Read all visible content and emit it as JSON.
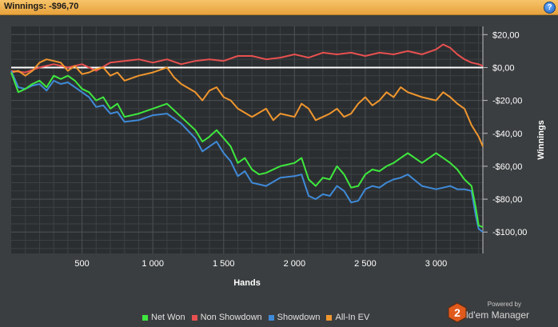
{
  "header": {
    "title": "Winnings: -$96,70",
    "help_label": "?"
  },
  "chart_data": {
    "type": "line",
    "xlabel": "Hands",
    "ylabel": "Winnings",
    "xlim": [
      0,
      3330
    ],
    "ylim": [
      -113,
      25
    ],
    "x_ticks": [
      500,
      1000,
      1500,
      2000,
      2500,
      3000
    ],
    "x_tick_labels": [
      "500",
      "1 000",
      "1 500",
      "2 000",
      "2 500",
      "3 000"
    ],
    "y_ticks": [
      20,
      0,
      -20,
      -40,
      -60,
      -80,
      -100
    ],
    "y_tick_labels": [
      "$20,00",
      "$0,00",
      "-$20,00",
      "-$40,00",
      "-$60,00",
      "-$80,00",
      "-$100,00"
    ],
    "grid": true,
    "legend_position": "bottom",
    "zero_line": true,
    "series": [
      {
        "name": "Net Won",
        "color": "#3ee83e",
        "x": [
          0,
          50,
          100,
          150,
          200,
          250,
          300,
          350,
          400,
          450,
          500,
          550,
          600,
          650,
          700,
          750,
          800,
          900,
          1000,
          1100,
          1200,
          1300,
          1350,
          1400,
          1450,
          1500,
          1550,
          1600,
          1650,
          1700,
          1750,
          1800,
          1900,
          2000,
          2050,
          2100,
          2150,
          2200,
          2250,
          2300,
          2350,
          2400,
          2450,
          2500,
          2550,
          2600,
          2650,
          2700,
          2750,
          2800,
          2900,
          3000,
          3050,
          3100,
          3150,
          3200,
          3250,
          3280,
          3300,
          3330
        ],
        "y": [
          -3,
          -15,
          -13,
          -10,
          -8,
          -12,
          -5,
          -7,
          -5,
          -8,
          -13,
          -15,
          -20,
          -18,
          -25,
          -22,
          -30,
          -28,
          -25,
          -22,
          -30,
          -38,
          -45,
          -42,
          -38,
          -43,
          -48,
          -58,
          -55,
          -62,
          -65,
          -64,
          -60,
          -58,
          -55,
          -68,
          -72,
          -67,
          -68,
          -60,
          -65,
          -73,
          -72,
          -65,
          -62,
          -63,
          -60,
          -58,
          -55,
          -52,
          -58,
          -52,
          -55,
          -58,
          -62,
          -68,
          -72,
          -85,
          -96,
          -97
        ]
      },
      {
        "name": "Non Showdown",
        "color": "#e85050",
        "x": [
          0,
          100,
          200,
          300,
          400,
          500,
          600,
          700,
          800,
          900,
          1000,
          1100,
          1200,
          1300,
          1400,
          1500,
          1600,
          1700,
          1800,
          1900,
          2000,
          2100,
          2200,
          2300,
          2400,
          2500,
          2600,
          2700,
          2800,
          2900,
          3000,
          3050,
          3100,
          3150,
          3200,
          3250,
          3300,
          3330
        ],
        "y": [
          -2,
          -3,
          0,
          2,
          0,
          2,
          -2,
          3,
          4,
          5,
          3,
          5,
          2,
          4,
          5,
          4,
          7,
          7,
          5,
          6,
          8,
          6,
          9,
          8,
          9,
          7,
          9,
          8,
          10,
          8,
          11,
          14,
          12,
          8,
          5,
          3,
          2,
          1
        ]
      },
      {
        "name": "Showdown",
        "color": "#3f8ad8",
        "x": [
          0,
          50,
          100,
          150,
          200,
          250,
          300,
          350,
          400,
          450,
          500,
          550,
          600,
          650,
          700,
          750,
          800,
          900,
          1000,
          1100,
          1200,
          1300,
          1350,
          1400,
          1450,
          1500,
          1550,
          1600,
          1650,
          1700,
          1750,
          1800,
          1900,
          2000,
          2050,
          2100,
          2150,
          2200,
          2250,
          2300,
          2350,
          2400,
          2450,
          2500,
          2550,
          2600,
          2650,
          2700,
          2750,
          2800,
          2900,
          3000,
          3050,
          3100,
          3150,
          3200,
          3250,
          3280,
          3300,
          3330
        ],
        "y": [
          -2,
          -12,
          -13,
          -11,
          -10,
          -14,
          -8,
          -10,
          -9,
          -12,
          -15,
          -18,
          -24,
          -23,
          -28,
          -27,
          -33,
          -32,
          -29,
          -28,
          -34,
          -43,
          -51,
          -48,
          -45,
          -52,
          -57,
          -66,
          -63,
          -70,
          -71,
          -72,
          -67,
          -66,
          -65,
          -78,
          -80,
          -77,
          -78,
          -72,
          -75,
          -82,
          -81,
          -74,
          -72,
          -73,
          -70,
          -68,
          -67,
          -65,
          -72,
          -74,
          -73,
          -72,
          -74,
          -74,
          -75,
          -90,
          -98,
          -100
        ]
      },
      {
        "name": "All-In EV",
        "color": "#f0962e",
        "x": [
          0,
          50,
          100,
          150,
          200,
          250,
          300,
          350,
          400,
          450,
          500,
          550,
          600,
          650,
          700,
          750,
          800,
          900,
          1000,
          1100,
          1150,
          1200,
          1300,
          1350,
          1400,
          1450,
          1500,
          1550,
          1600,
          1700,
          1800,
          1850,
          1900,
          2000,
          2050,
          2100,
          2150,
          2200,
          2250,
          2300,
          2350,
          2400,
          2450,
          2500,
          2550,
          2600,
          2650,
          2700,
          2750,
          2800,
          2900,
          3000,
          3050,
          3100,
          3150,
          3200,
          3250,
          3300,
          3330
        ],
        "y": [
          -3,
          -2,
          -5,
          -2,
          3,
          5,
          4,
          3,
          -2,
          1,
          -4,
          -3,
          -1,
          0,
          -5,
          -3,
          -8,
          -5,
          -3,
          0,
          -6,
          -10,
          -15,
          -20,
          -14,
          -12,
          -18,
          -20,
          -25,
          -30,
          -25,
          -32,
          -28,
          -30,
          -22,
          -25,
          -32,
          -30,
          -28,
          -25,
          -30,
          -28,
          -22,
          -18,
          -23,
          -20,
          -15,
          -18,
          -12,
          -15,
          -18,
          -20,
          -15,
          -18,
          -22,
          -25,
          -35,
          -42,
          -48
        ]
      }
    ]
  },
  "legend": [
    {
      "label": "Net Won",
      "color": "#3ee83e"
    },
    {
      "label": "Non Showdown",
      "color": "#e85050"
    },
    {
      "label": "Showdown",
      "color": "#3f8ad8"
    },
    {
      "label": "All-In EV",
      "color": "#f0962e"
    }
  ],
  "branding": {
    "powered_by": "Powered by",
    "product": "Hold'em Manager",
    "badge": "2",
    "badge_color": "#e05a1c"
  },
  "colors": {
    "plot_bg": "#2b2e30",
    "grid": "#3d4144",
    "zero_line": "#ffffff"
  }
}
